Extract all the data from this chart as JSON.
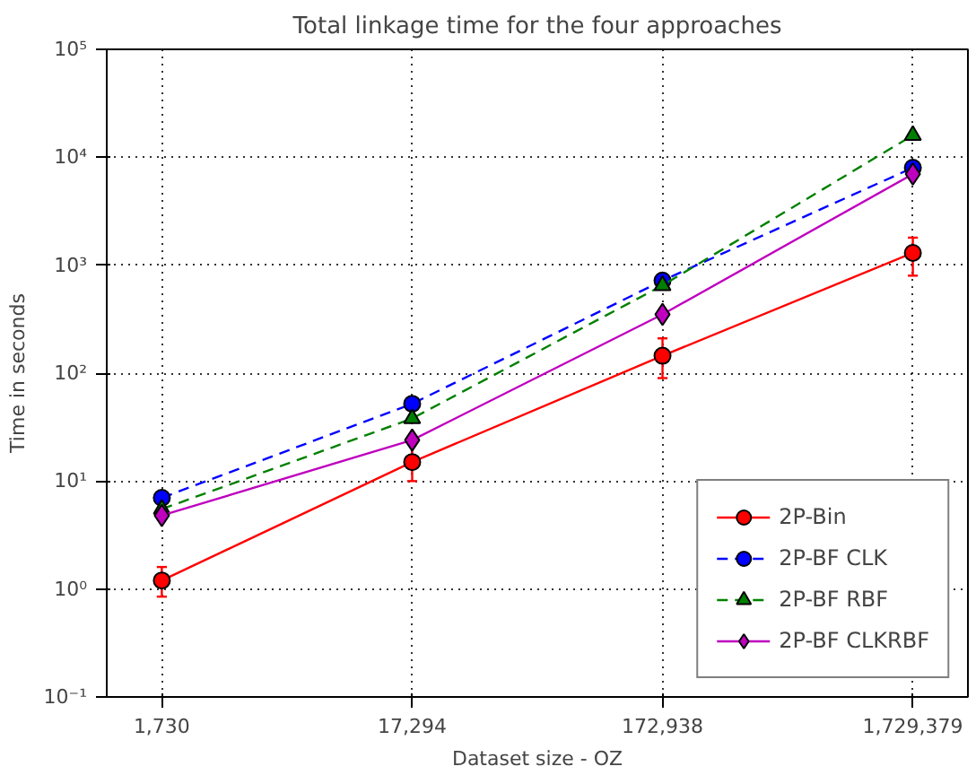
{
  "chart_data": {
    "type": "line",
    "title": "Total linkage time for the four approaches",
    "xlabel": "Dataset size - OZ",
    "ylabel": "Time in seconds",
    "categories": [
      "1,730",
      "17,294",
      "172,938",
      "1,729,379"
    ],
    "log": "y",
    "ylim": [
      0.1,
      100000
    ],
    "yticks": [
      {
        "value": 0.1,
        "label": "10⁻¹"
      },
      {
        "value": 1,
        "label": "10⁰"
      },
      {
        "value": 10,
        "label": "10¹"
      },
      {
        "value": 100,
        "label": "10²"
      },
      {
        "value": 1000,
        "label": "10³"
      },
      {
        "value": 10000,
        "label": "10⁴"
      },
      {
        "value": 100000,
        "label": "10⁵"
      }
    ],
    "grid": true,
    "legend": "bottom right",
    "series": [
      {
        "name": "2P-Bin",
        "color": "#ff0000",
        "values": [
          1.2,
          15,
          145,
          1300
        ],
        "errors": [
          [
            0.85,
            1.6
          ],
          [
            10,
            22
          ],
          [
            90,
            210
          ],
          [
            800,
            1800
          ]
        ],
        "marker": "circle",
        "line_style": "solid"
      },
      {
        "name": "2P-BF CLK",
        "color": "#0000ff",
        "values": [
          7,
          52,
          720,
          8000
        ],
        "marker": "circle",
        "line_style": "dashed"
      },
      {
        "name": "2P-BF RBF",
        "color": "#008000",
        "values": [
          5.5,
          38,
          650,
          16000
        ],
        "marker": "triangle",
        "line_style": "dashed"
      },
      {
        "name": "2P-BF CLKRBF",
        "color": "#bf00bf",
        "values": [
          4.8,
          24,
          350,
          7000
        ],
        "marker": "diamond",
        "line_style": "solid"
      }
    ]
  }
}
